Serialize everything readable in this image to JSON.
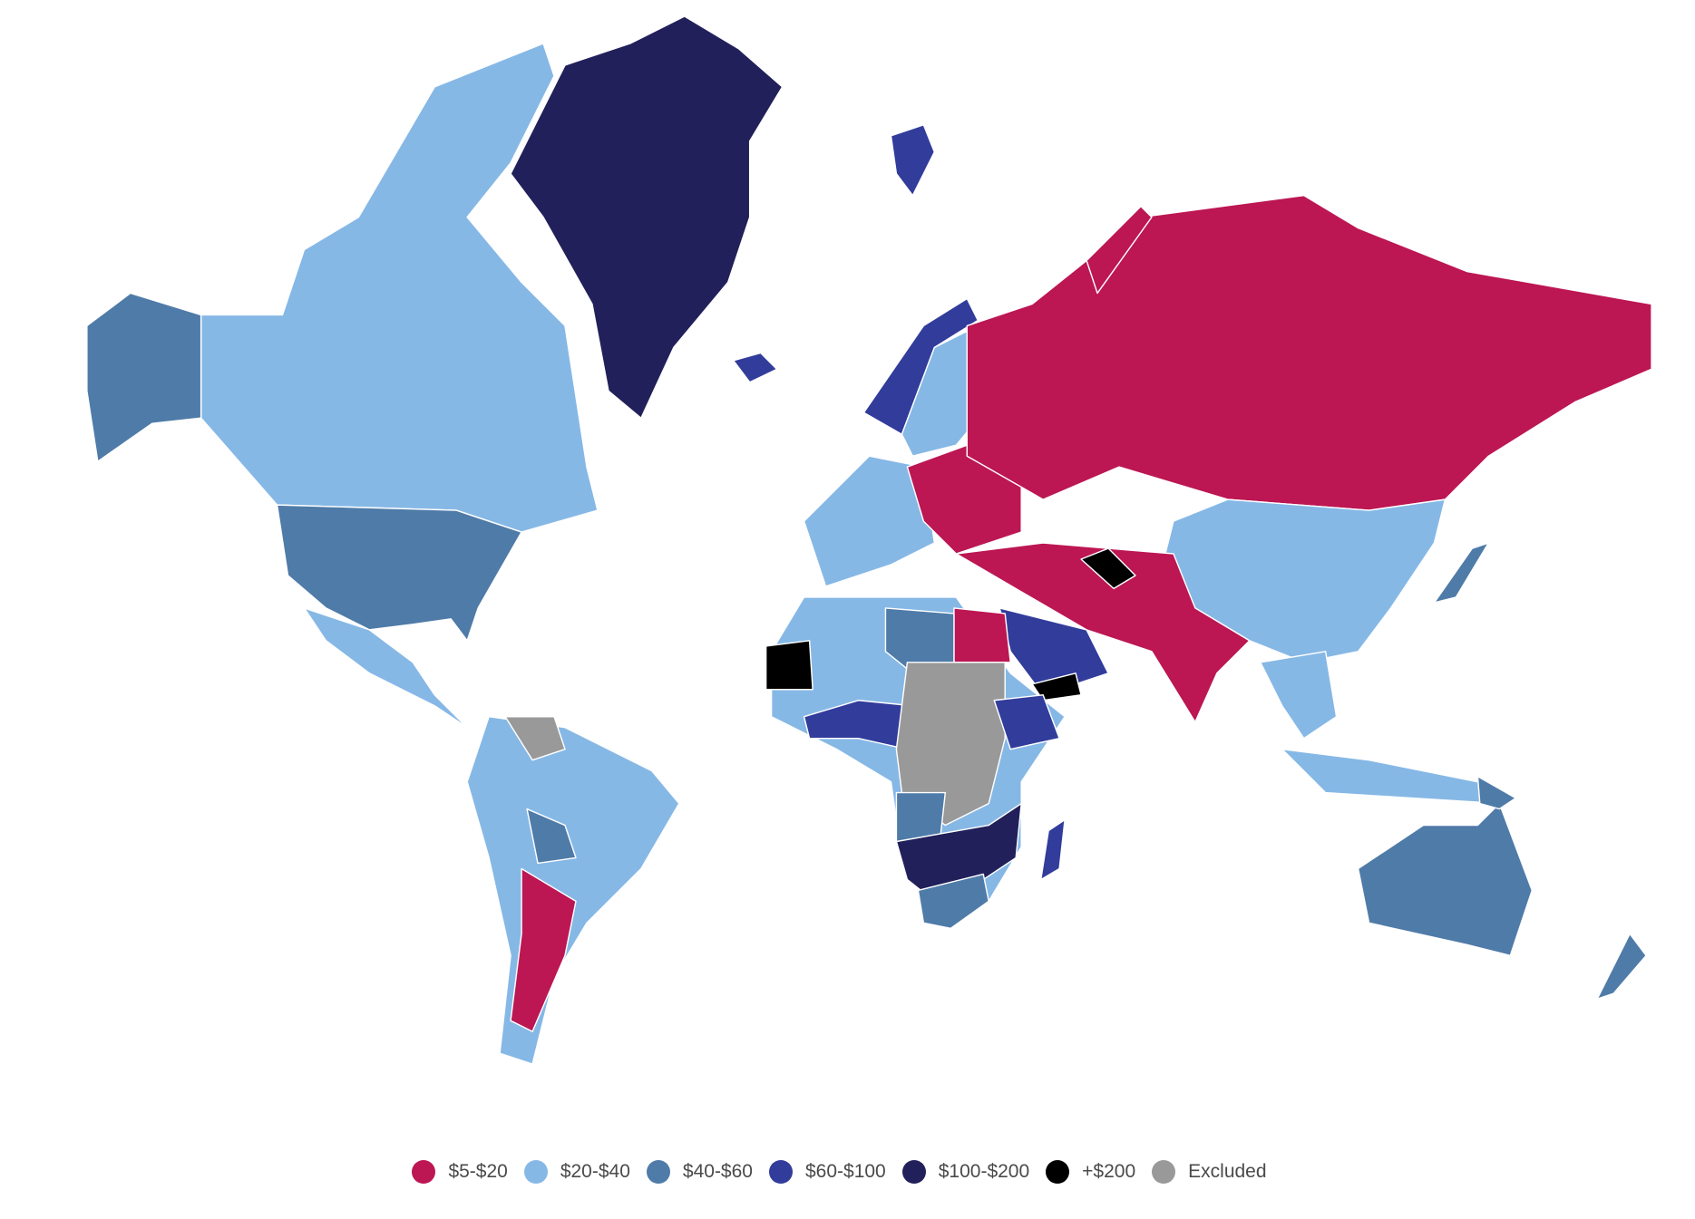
{
  "legend": [
    {
      "label": "$5-$20",
      "color": "#bc1653"
    },
    {
      "label": "$20-$40",
      "color": "#86b8e6"
    },
    {
      "label": "$40-$60",
      "color": "#4f7ba8"
    },
    {
      "label": "$60-$100",
      "color": "#313c9b"
    },
    {
      "label": "$100-$200",
      "color": "#21205a"
    },
    {
      "label": "+$200",
      "color": "#000000"
    },
    {
      "label": "Excluded",
      "color": "#999999"
    }
  ]
}
